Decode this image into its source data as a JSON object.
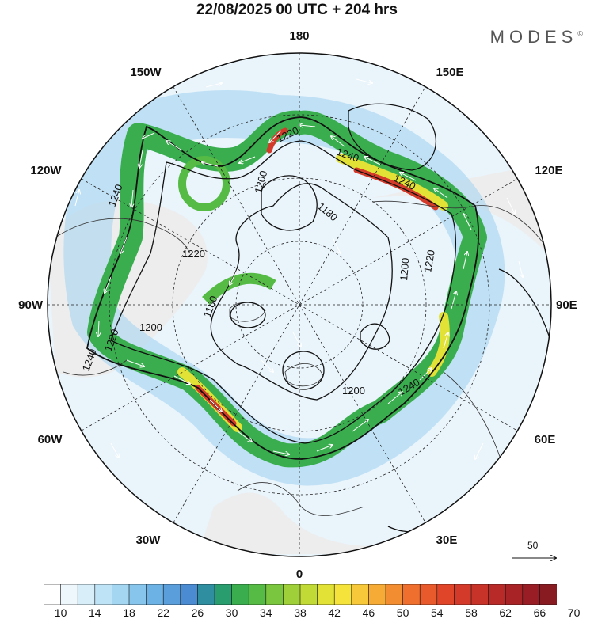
{
  "header": {
    "title": "22/08/2025  00 UTC  + 204 hrs",
    "brand": "MODES",
    "brand_mark": "©"
  },
  "map": {
    "projection": "north polar stereographic",
    "longitude_labels": [
      "180",
      "150E",
      "120E",
      "90E",
      "60E",
      "30E",
      "0",
      "30W",
      "60W",
      "90W",
      "120W",
      "150W"
    ],
    "contour_labels": [
      "1220",
      "1240",
      "1240",
      "1200",
      "1180",
      "1220",
      "1200",
      "1240",
      "1220",
      "1180",
      "1200",
      "1220",
      "1240",
      "1200",
      "1240"
    ],
    "wind_reference": {
      "value": "50"
    }
  },
  "colorbar": {
    "tick_labels": [
      "10",
      "14",
      "18",
      "22",
      "26",
      "30",
      "34",
      "38",
      "42",
      "46",
      "50",
      "54",
      "58",
      "62",
      "66",
      "70"
    ],
    "colors": [
      "#ffffff",
      "#eef7fc",
      "#d8eef9",
      "#bfe3f6",
      "#a4d5f1",
      "#87c5ec",
      "#6cb2e4",
      "#5a9fdb",
      "#4a8bd1",
      "#2f8fa0",
      "#2a9d6f",
      "#3aad4f",
      "#55bb44",
      "#7ac63e",
      "#9fd03a",
      "#c2da36",
      "#e2e236",
      "#f5e23a",
      "#f7c93a",
      "#f5ab36",
      "#f28d32",
      "#ee6f2e",
      "#e85a2c",
      "#e0452a",
      "#d43a2a",
      "#c73229",
      "#b82a28",
      "#a82326",
      "#981d24",
      "#881a22"
    ]
  }
}
